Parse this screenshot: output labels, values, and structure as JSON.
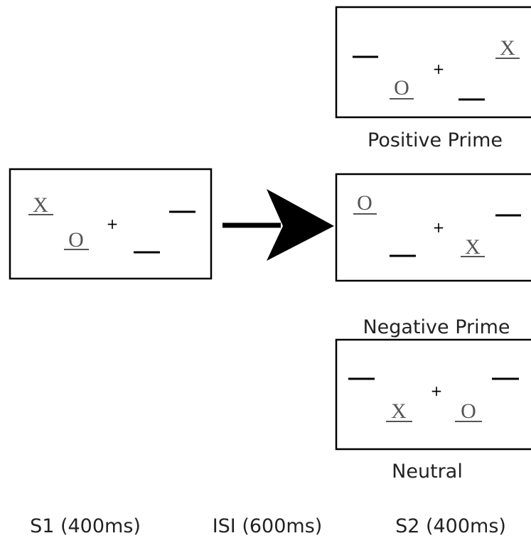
{
  "s1": {
    "letters": [
      "X",
      "O"
    ],
    "fixation": "+"
  },
  "s2": [
    {
      "label": "Positive Prime",
      "letters": [
        "O",
        "X"
      ],
      "fixation": "+"
    },
    {
      "label": "Negative Prime",
      "letters": [
        "O",
        "X"
      ],
      "fixation": "+"
    },
    {
      "label": "Neutral",
      "letters": [
        "X",
        "O"
      ],
      "fixation": "+"
    }
  ],
  "timeline": [
    "S1 (400ms)",
    "ISI (600ms)",
    "S2 (400ms)"
  ]
}
